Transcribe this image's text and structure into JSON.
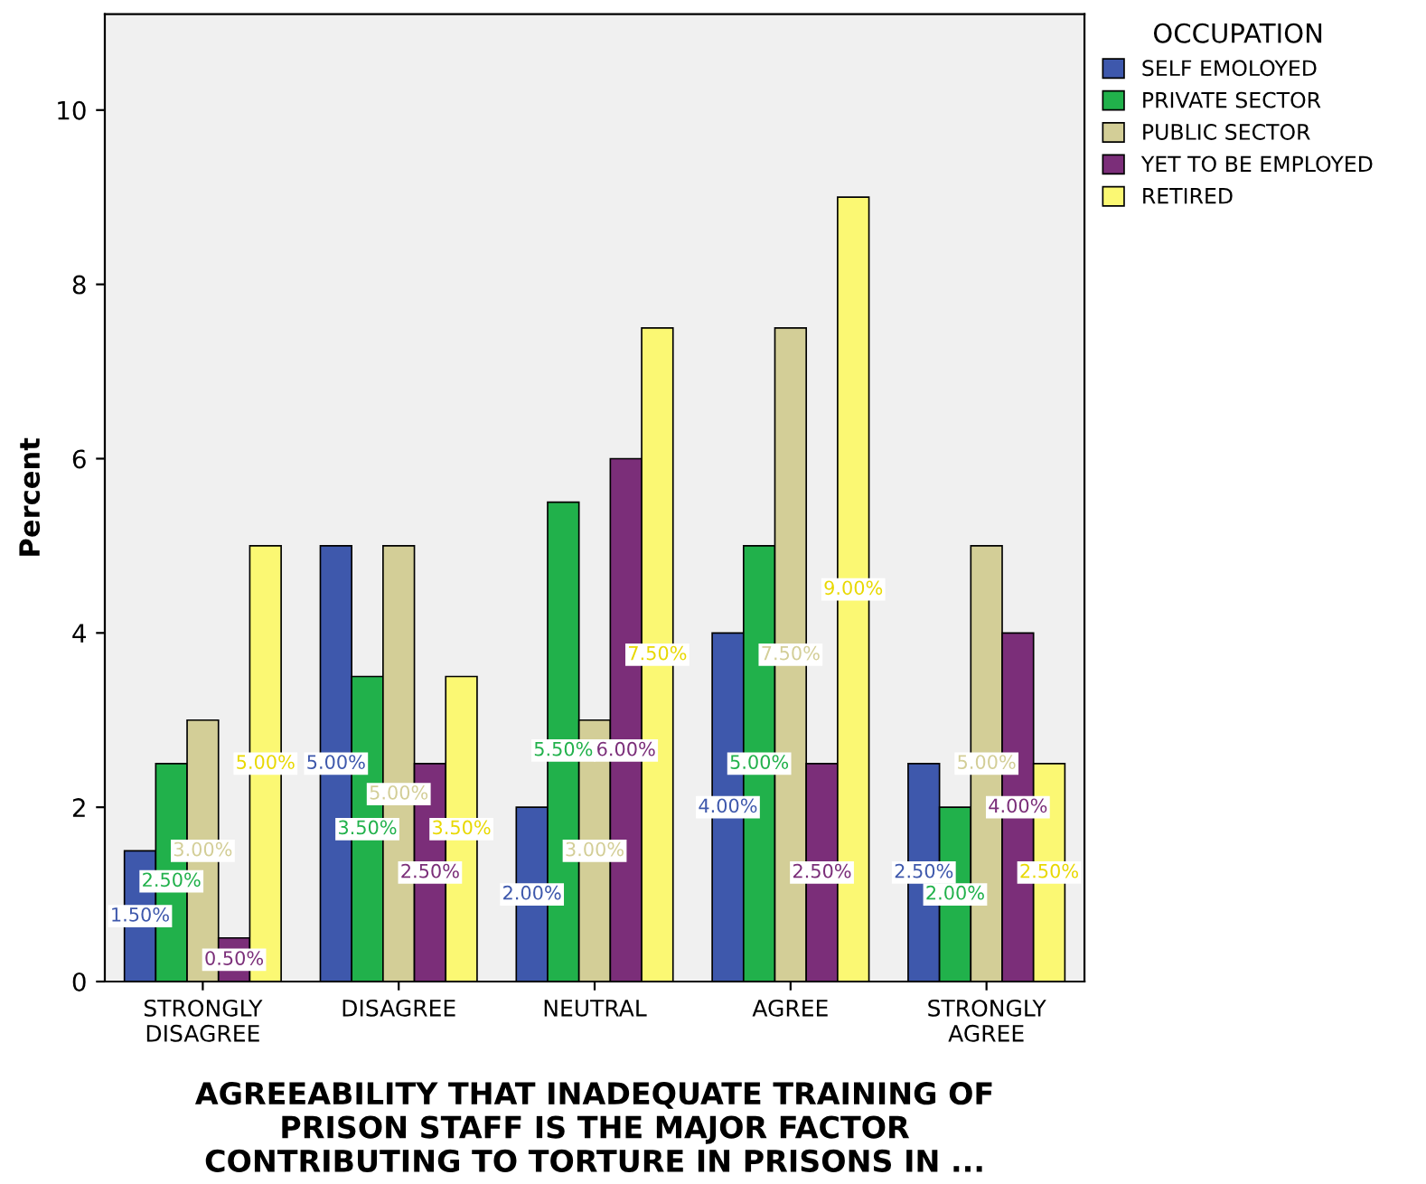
{
  "chart_data": {
    "type": "bar",
    "xlabel": "AGREEABILITY THAT INADEQUATE TRAINING OF\nPRISON STAFF IS THE MAJOR FACTOR\nCONTRIBUTING TO TORTURE IN PRISONS IN ...",
    "ylabel": "Percent",
    "legend_title": "OCCUPATION",
    "legend": "top right",
    "grid": false,
    "categories": [
      "STRONGLY\nDISAGREE",
      "DISAGREE",
      "NEUTRAL",
      "AGREE",
      "STRONGLY\nAGREE"
    ],
    "ylim": [
      0,
      11.1
    ],
    "yticks": [
      0,
      2,
      4,
      6,
      8,
      10
    ],
    "series": [
      {
        "name": "SELF EMOLOYED",
        "color": "#3e58ac",
        "values": [
          1.5,
          5,
          2,
          4,
          2.5
        ],
        "value_labels": [
          "1.50%",
          "5.00%",
          "2.00%",
          "4.00%",
          "2.50%"
        ]
      },
      {
        "name": "PRIVATE SECTOR",
        "color": "#21b14b",
        "values": [
          2.5,
          3.5,
          5.5,
          5,
          2
        ],
        "value_labels": [
          "2.50%",
          "3.50%",
          "5.50%",
          "5.00%",
          "2.00%"
        ]
      },
      {
        "name": "PUBLIC SECTOR",
        "color": "#d3ce97",
        "values": [
          3,
          5,
          3,
          7.5,
          5
        ],
        "value_labels": [
          "3.00%",
          "5.00%",
          "3.00%",
          "7.50%",
          "5.00%"
        ]
      },
      {
        "name": "YET TO BE EMPLOYED",
        "color": "#7b2e79",
        "values": [
          0.5,
          2.5,
          6,
          2.5,
          4
        ],
        "value_labels": [
          "0.50%",
          "2.50%",
          "6.00%",
          "2.50%",
          "4.00%"
        ]
      },
      {
        "name": "RETIRED",
        "color": "#fbf873",
        "values": [
          5,
          3.5,
          7.5,
          9,
          2.5
        ],
        "value_labels": [
          "5.00%",
          "3.50%",
          "7.50%",
          "9.00%",
          "2.50%"
        ]
      }
    ]
  }
}
